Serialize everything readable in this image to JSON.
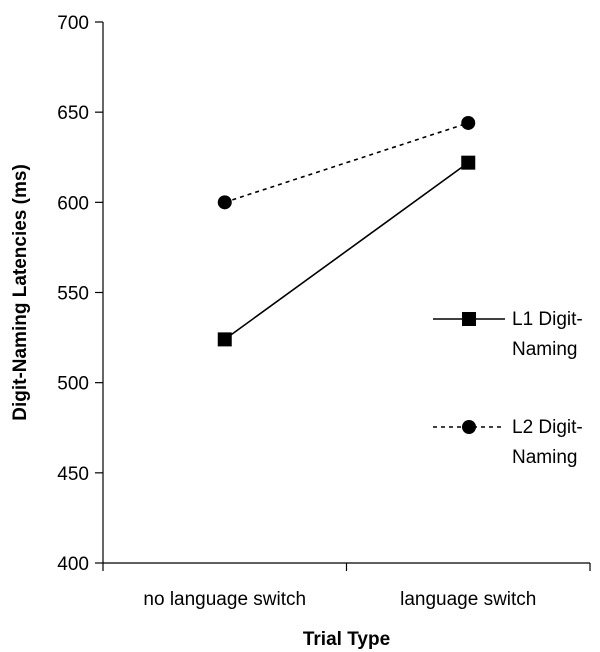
{
  "chart_data": {
    "type": "line",
    "title": "",
    "xlabel": "Trial Type",
    "ylabel": "Digit-Naming Latencies (ms)",
    "categories": [
      "no language switch",
      "language switch"
    ],
    "ylim": [
      400,
      700
    ],
    "yticks": [
      400,
      450,
      500,
      550,
      600,
      650,
      700
    ],
    "grid": false,
    "legend_position": "right",
    "series": [
      {
        "name_lines": [
          "L1 Digit-",
          "Naming"
        ],
        "values": [
          524,
          622
        ],
        "line_style": "solid",
        "marker": "square",
        "color": "#000000"
      },
      {
        "name_lines": [
          "L2 Digit-",
          "Naming"
        ],
        "values": [
          600,
          644
        ],
        "line_style": "dashed",
        "marker": "circle",
        "color": "#000000"
      }
    ]
  }
}
